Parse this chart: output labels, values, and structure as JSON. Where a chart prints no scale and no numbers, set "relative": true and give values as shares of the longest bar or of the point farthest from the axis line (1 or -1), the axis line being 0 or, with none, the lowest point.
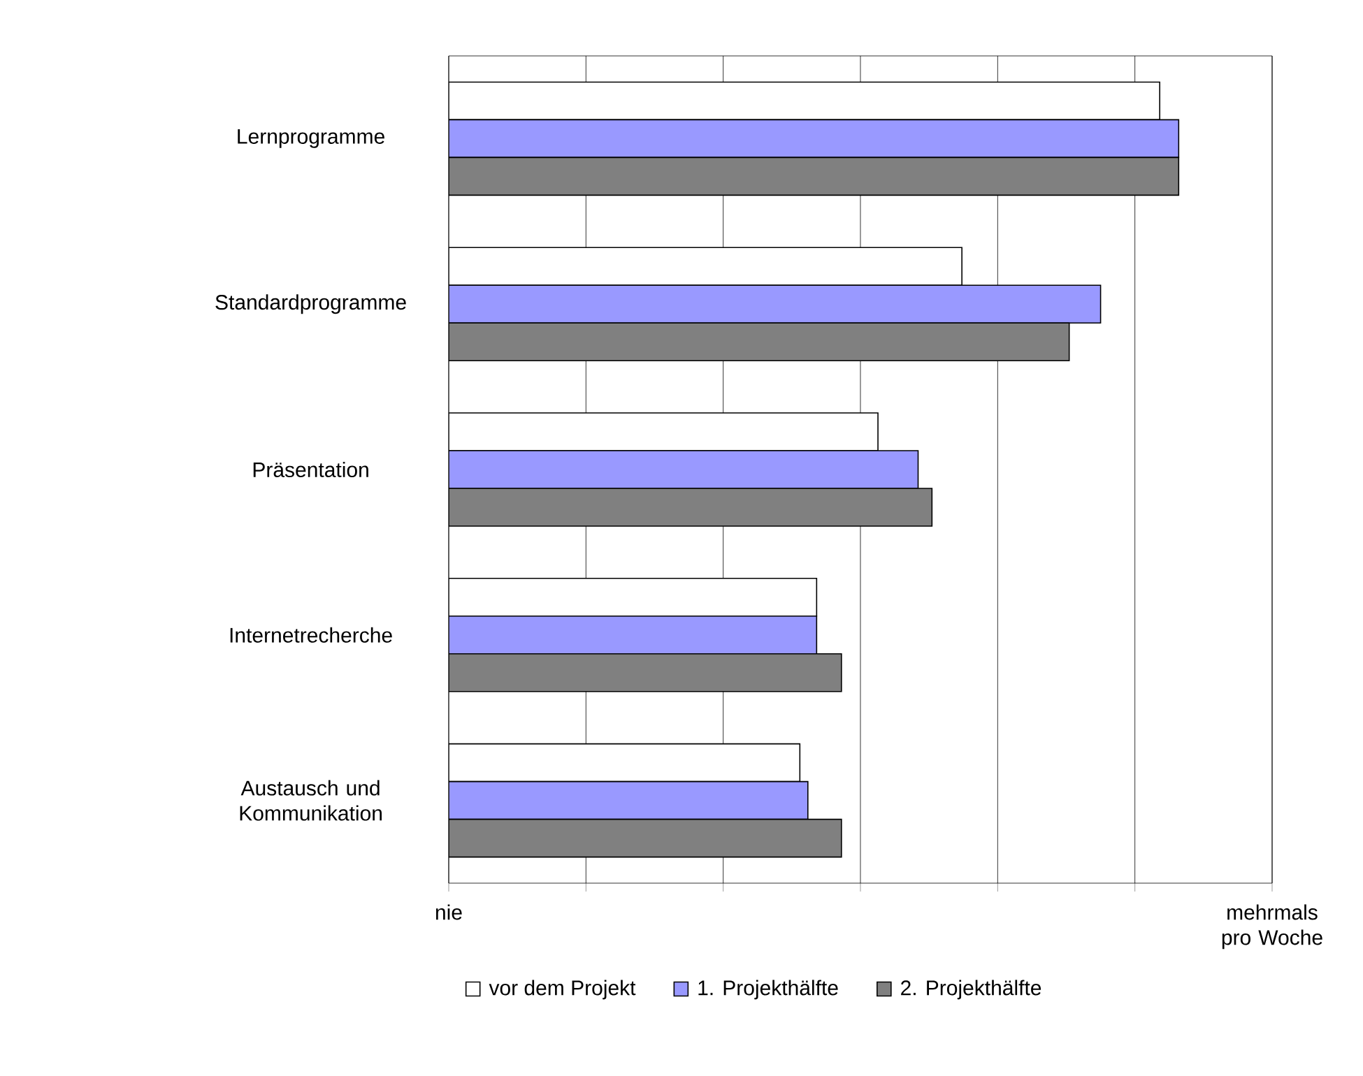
{
  "chart_data": {
    "type": "bar",
    "orientation": "horizontal",
    "relative": true,
    "categories": [
      "Lernprogramme",
      "Standardprogramme",
      "Präsentation",
      "Internetrecherche",
      "Austausch und Kommunikation"
    ],
    "series": [
      {
        "name": "vor dem Projekt",
        "color": "#ffffff",
        "values": [
          0.974,
          0.703,
          0.588,
          0.504,
          0.481
        ]
      },
      {
        "name": "1. Projekthälfte",
        "color": "#9999ff",
        "values": [
          1,
          0.893,
          0.643,
          0.504,
          0.492
        ]
      },
      {
        "name": "2. Projekthälfte",
        "color": "#808080",
        "values": [
          1,
          0.85,
          0.662,
          0.538,
          0.538
        ]
      }
    ],
    "annotations": [
      "nie",
      "mehrmals pro Woche"
    ],
    "grid": "x",
    "legend": "bottom"
  }
}
